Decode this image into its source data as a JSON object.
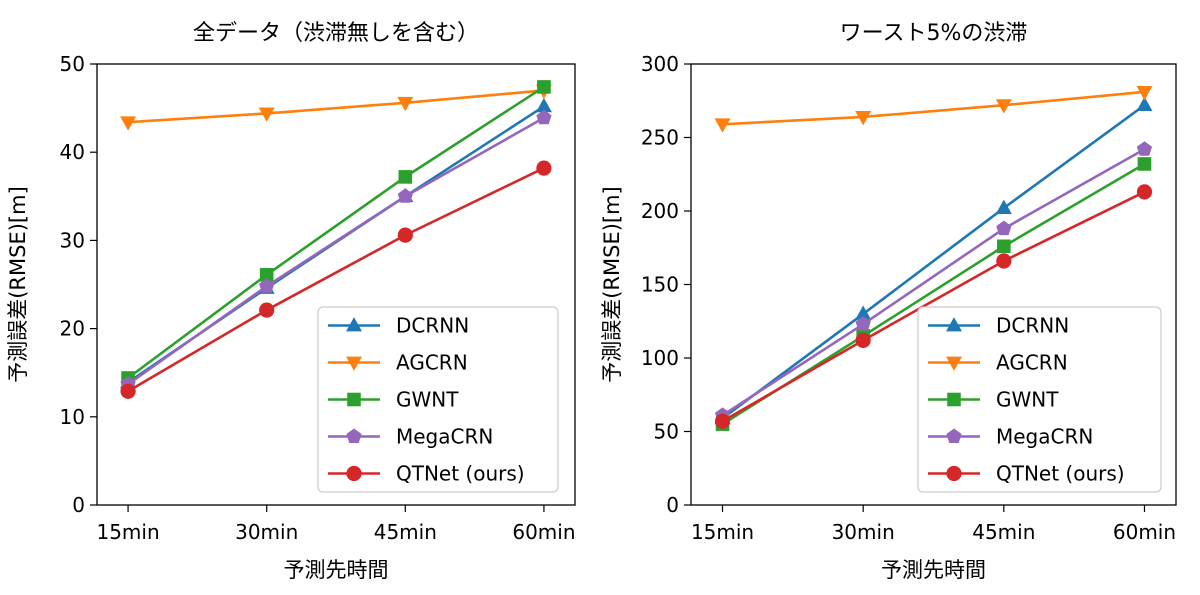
{
  "chart_data": [
    {
      "type": "line",
      "title": "全データ（渋滞無しを含む）",
      "xlabel": "予測先時間",
      "ylabel": "予測誤差(RMSE)[m]",
      "categories": [
        "15min",
        "30min",
        "45min",
        "60min"
      ],
      "ylim": [
        0,
        50
      ],
      "yticks": [
        0,
        10,
        20,
        30,
        40,
        50
      ],
      "grid": false,
      "legend_position": "bottom-right",
      "series": [
        {
          "name": "DCRNN",
          "color": "#1f77b4",
          "marker": "triangle-up",
          "values": [
            13.9,
            24.6,
            35.0,
            45.2
          ]
        },
        {
          "name": "AGCRN",
          "color": "#ff7f0e",
          "marker": "triangle-down",
          "values": [
            43.4,
            44.4,
            45.6,
            47.0
          ]
        },
        {
          "name": "GWNT",
          "color": "#2ca02c",
          "marker": "square",
          "values": [
            14.4,
            26.1,
            37.2,
            47.4
          ]
        },
        {
          "name": "MegaCRN",
          "color": "#9467bd",
          "marker": "pentagon",
          "values": [
            13.7,
            24.8,
            35.0,
            43.9
          ]
        },
        {
          "name": "QTNet (ours)",
          "color": "#d62728",
          "marker": "circle",
          "values": [
            12.9,
            22.1,
            30.6,
            38.2
          ]
        }
      ]
    },
    {
      "type": "line",
      "title": "ワースト5%の渋滞",
      "xlabel": "予測先時間",
      "ylabel": "予測誤差(RMSE)[m]",
      "categories": [
        "15min",
        "30min",
        "45min",
        "60min"
      ],
      "ylim": [
        0,
        300
      ],
      "yticks": [
        0,
        50,
        100,
        150,
        200,
        250,
        300
      ],
      "grid": false,
      "legend_position": "bottom-right",
      "series": [
        {
          "name": "DCRNN",
          "color": "#1f77b4",
          "marker": "triangle-up",
          "values": [
            59,
            130,
            202,
            272
          ]
        },
        {
          "name": "AGCRN",
          "color": "#ff7f0e",
          "marker": "triangle-down",
          "values": [
            259,
            264,
            272,
            281
          ]
        },
        {
          "name": "GWNT",
          "color": "#2ca02c",
          "marker": "square",
          "values": [
            55,
            115,
            176,
            232
          ]
        },
        {
          "name": "MegaCRN",
          "color": "#9467bd",
          "marker": "pentagon",
          "values": [
            61,
            123,
            188,
            242
          ]
        },
        {
          "name": "QTNet (ours)",
          "color": "#d62728",
          "marker": "circle",
          "values": [
            57,
            112,
            166,
            213
          ]
        }
      ]
    }
  ]
}
